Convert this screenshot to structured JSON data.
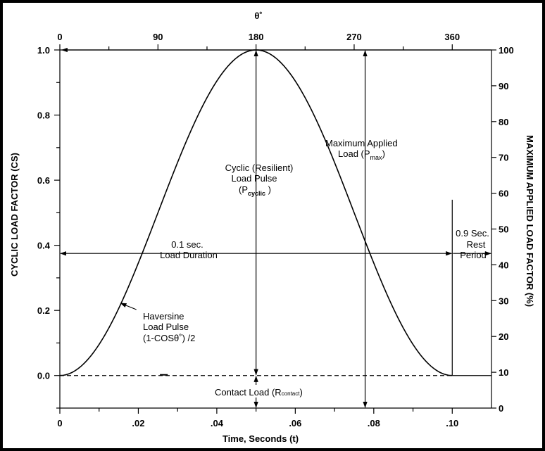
{
  "chart_data": {
    "type": "line",
    "title": "",
    "top_axis": {
      "label": "θ˚",
      "ticks": [
        0,
        90,
        180,
        270,
        360
      ]
    },
    "x_axis": {
      "label": "Time, Seconds (t)",
      "range": [
        0,
        0.11
      ],
      "ticks": [
        0,
        0.02,
        0.04,
        0.06,
        0.08,
        0.1
      ],
      "tick_labels": [
        "0",
        ".02",
        ".04",
        ".06",
        ".08",
        ".10"
      ]
    },
    "y_left": {
      "label": "CYCLIC LOAD FACTOR (CS)",
      "range": [
        -0.1,
        1.0
      ],
      "ticks": [
        0.0,
        0.2,
        0.4,
        0.6,
        0.8,
        1.0
      ],
      "tick_labels": [
        "0.0",
        "0.2",
        "0.4",
        "0.6",
        "0.8",
        "1.0"
      ]
    },
    "y_right": {
      "label": "MAXIMUM APPLIED LOAD FACTOR (%)",
      "ticks": [
        0,
        10,
        20,
        30,
        40,
        50,
        60,
        70,
        80,
        90,
        100
      ],
      "tick_labels": [
        "0",
        "10",
        "20",
        "30",
        "40",
        "50",
        "60",
        "70",
        "80",
        "90",
        "100"
      ]
    },
    "series": [
      {
        "formula": "(1 - cos(θ)) / 2",
        "t_start": 0,
        "t_end": 0.1,
        "x": [
          0,
          0.01,
          0.02,
          0.03,
          0.04,
          0.05,
          0.06,
          0.07,
          0.08,
          0.09,
          0.1
        ],
        "y": [
          0,
          0.095,
          0.345,
          0.655,
          0.905,
          1.0,
          0.905,
          0.655,
          0.345,
          0.095,
          0
        ]
      }
    ],
    "annotations": {
      "haversine": [
        "Haversine",
        "Load Pulse",
        "(1-COSθ˚) /2"
      ],
      "cyclic_pulse": [
        "Cyclic (Resilient)",
        "Load Pulse",
        "(P",
        "cyclic",
        " )"
      ],
      "max_load": [
        "Maximum Applied",
        "Load (P",
        "max",
        ")"
      ],
      "load_duration": [
        "0.1 sec.",
        "Load Duration"
      ],
      "rest_period": [
        "0.9 Sec.",
        "Rest",
        "Period"
      ],
      "contact_load": [
        "Contact Load (R",
        "contact",
        ")"
      ]
    }
  }
}
